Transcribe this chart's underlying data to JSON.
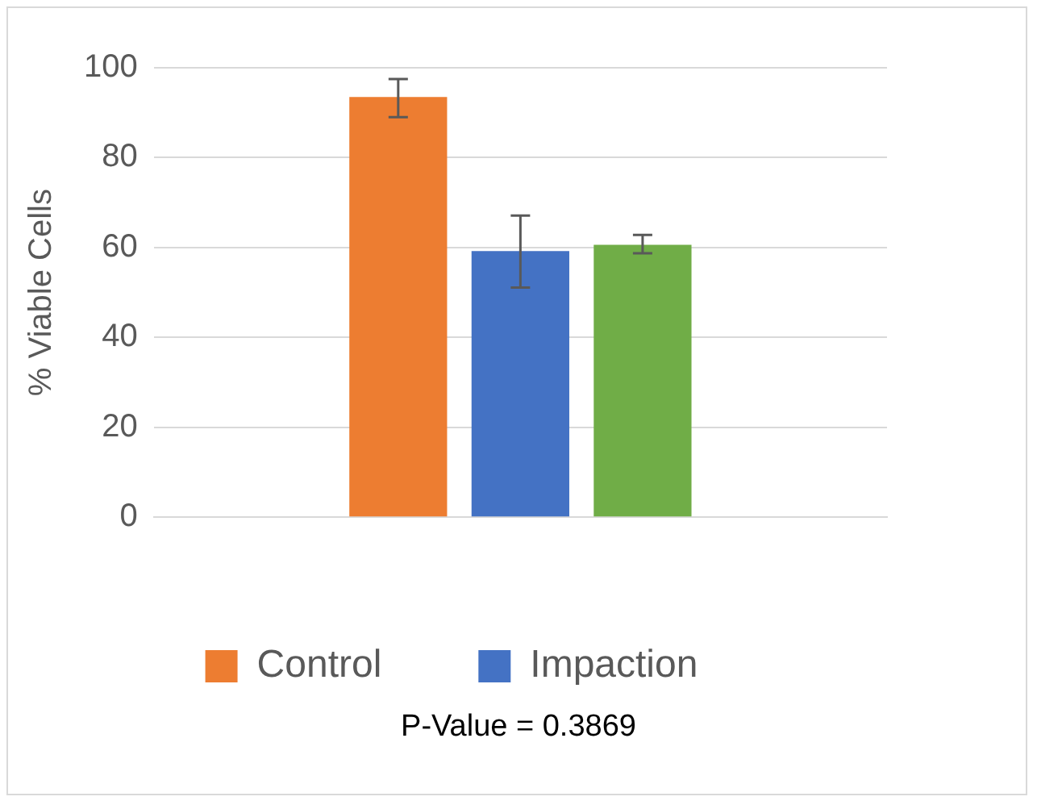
{
  "chart_data": {
    "type": "bar",
    "ylabel": "% Viable Cells",
    "categories": [
      null
    ],
    "series": [
      {
        "name": "Control",
        "color": "#ed7d31",
        "values": [
          93.5
        ],
        "errors": [
          [
            89.0,
            97.5
          ]
        ]
      },
      {
        "name": "Impaction",
        "color": "#4472c4",
        "values": [
          59.2
        ],
        "errors": [
          [
            51.1,
            67.1
          ]
        ]
      },
      {
        "color": "#70ad47",
        "values": [
          60.6
        ],
        "errors": [
          [
            58.7,
            62.8
          ]
        ]
      }
    ],
    "ylim": [
      0,
      100
    ],
    "yticks": [
      0,
      20,
      40,
      60,
      80,
      100
    ],
    "grid": "y",
    "legend": "bottom",
    "annotations": [
      "P-Value = 0.3869"
    ]
  }
}
